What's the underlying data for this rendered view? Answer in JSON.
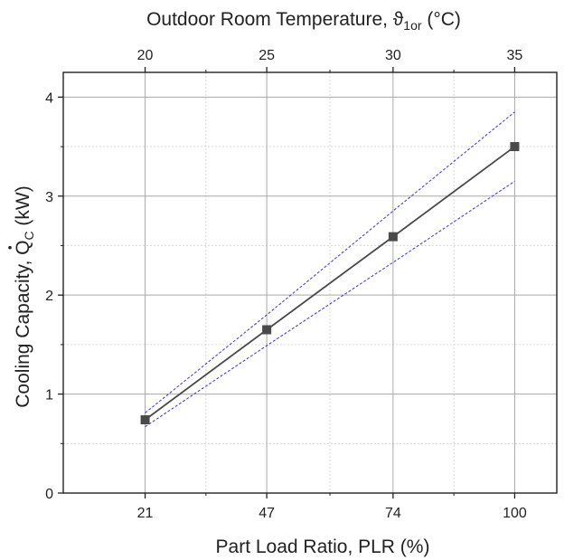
{
  "chart_data": {
    "type": "line",
    "xlabel": "Part Load Ratio, PLR (%)",
    "ylabel_prefix": "Cooling Capacity, ",
    "ylabel_symbol": "Q",
    "ylabel_subscript": "C",
    "ylabel_suffix": " (kW)",
    "top_xlabel_prefix": "Outdoor Room Temperature, ",
    "top_xlabel_symbol": "ϑ",
    "top_xlabel_subscript": "1or",
    "top_xlabel_suffix": "  (°C)",
    "x": [
      21,
      47,
      74,
      100
    ],
    "x_tick_labels": [
      "21",
      "47",
      "74",
      "100"
    ],
    "top_x_tick_labels": [
      "20",
      "25",
      "30",
      "35"
    ],
    "y_ticks": [
      0,
      1,
      2,
      3,
      4
    ],
    "y_tick_labels": [
      "0",
      "1",
      "2",
      "3",
      "4"
    ],
    "ylim": [
      0,
      4.25
    ],
    "xlim": [
      3.5,
      109
    ],
    "grid": true,
    "series": [
      {
        "values": [
          0.74,
          1.65,
          2.59,
          3.5
        ],
        "color": "#4a4a4a",
        "marker": "square"
      }
    ],
    "band": {
      "upper": [
        0.81,
        1.8,
        2.85,
        3.85
      ],
      "lower": [
        0.67,
        1.49,
        2.33,
        3.15
      ],
      "color": "#3333dd",
      "style": "dashed"
    }
  }
}
